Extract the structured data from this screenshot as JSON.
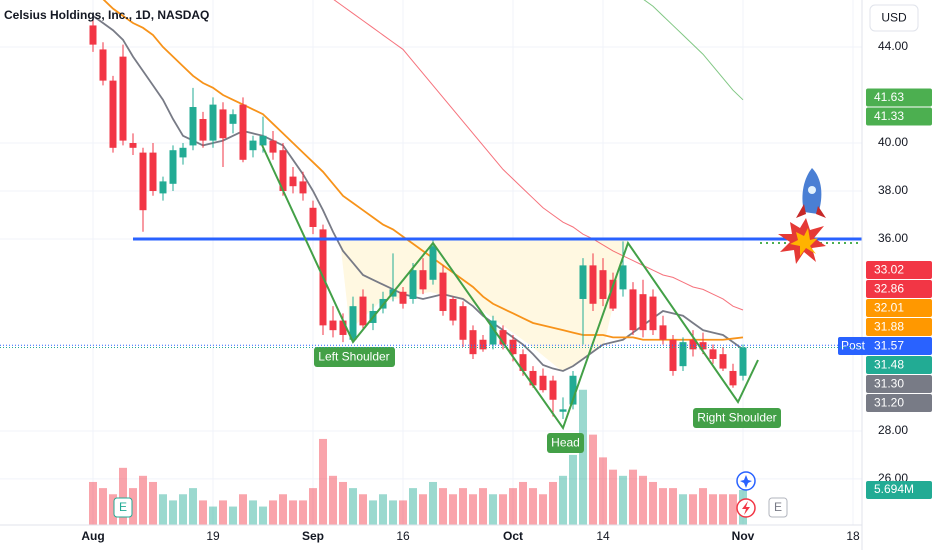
{
  "chart_data": {
    "type": "candlestick",
    "title": "Celsius Holdings, Inc., 1D, NASDAQ",
    "currency": "USD",
    "up_color": "#22ab94",
    "down_color": "#f23645",
    "grid": true,
    "categories": [
      "Aug",
      null,
      null,
      null,
      null,
      null,
      null,
      null,
      null,
      null,
      null,
      null,
      "19",
      null,
      null,
      null,
      null,
      null,
      null,
      null,
      null,
      null,
      "Sep",
      null,
      null,
      null,
      null,
      null,
      null,
      null,
      null,
      "16",
      null,
      null,
      null,
      null,
      null,
      null,
      null,
      null,
      null,
      null,
      "Oct",
      null,
      null,
      null,
      null,
      null,
      null,
      null,
      null,
      "14",
      null,
      null,
      null,
      null,
      null,
      null,
      null,
      null,
      null,
      null,
      null,
      null,
      null,
      "Nov",
      null,
      null,
      null,
      null,
      null,
      null,
      null,
      null,
      null,
      null,
      "18"
    ],
    "open": [
      44.9,
      43.9,
      42.6,
      43.6,
      40.0,
      39.6,
      39.6,
      37.9,
      38.3,
      39.4,
      39.9,
      41.0,
      40.1,
      41.4,
      40.8,
      41.6,
      39.7,
      39.9,
      40.1,
      39.7,
      38.6,
      38.4,
      37.3,
      36.4,
      32.6,
      32.6,
      31.8,
      33.6,
      32.5,
      33.1,
      33.6,
      33.8,
      33.5,
      34.7,
      34.3,
      34.6,
      33.5,
      33.2,
      32.2,
      31.8,
      31.6,
      32.2,
      31.8,
      31.2,
      30.5,
      30.3,
      30.1,
      28.8,
      29.1,
      33.5,
      34.9,
      34.7,
      34.3,
      33.9,
      33.9,
      33.7,
      33.6,
      32.4,
      31.8,
      30.7,
      31.8,
      31.7,
      31.4,
      31.2,
      30.5,
      30.3,
      null,
      null,
      null,
      null,
      null,
      null,
      null,
      null,
      null,
      null,
      null
    ],
    "high": [
      45.4,
      44.2,
      42.8,
      44.1,
      40.4,
      39.8,
      40.0,
      38.6,
      39.9,
      40.0,
      42.3,
      41.3,
      41.9,
      41.7,
      41.4,
      41.9,
      40.3,
      41.1,
      40.5,
      40.0,
      39.0,
      38.8,
      37.6,
      36.6,
      33.2,
      32.9,
      33.6,
      33.9,
      33.3,
      33.8,
      35.4,
      34.0,
      35.0,
      35.2,
      36.0,
      34.9,
      33.6,
      33.4,
      32.4,
      32.0,
      32.8,
      32.4,
      32.0,
      31.4,
      30.7,
      30.6,
      30.3,
      29.4,
      30.5,
      35.2,
      35.4,
      35.2,
      34.6,
      35.9,
      34.2,
      34.3,
      33.9,
      32.8,
      32.0,
      31.9,
      32.2,
      32.1,
      31.6,
      31.5,
      30.8,
      31.6,
      null,
      null,
      null,
      null,
      null,
      null,
      null,
      null,
      null,
      null,
      null
    ],
    "low": [
      43.8,
      42.4,
      39.6,
      39.9,
      39.5,
      36.3,
      37.8,
      37.6,
      38.0,
      39.1,
      39.7,
      39.8,
      39.8,
      39.0,
      40.4,
      39.2,
      39.4,
      39.6,
      39.3,
      37.8,
      37.9,
      37.6,
      36.2,
      32.0,
      31.9,
      31.7,
      31.7,
      32.2,
      32.2,
      32.9,
      33.4,
      33.1,
      33.3,
      33.7,
      34.1,
      32.8,
      32.4,
      31.5,
      31.0,
      31.3,
      31.4,
      31.4,
      30.9,
      30.3,
      29.8,
      29.6,
      28.6,
      28.5,
      28.9,
      31.6,
      33.0,
      33.2,
      33.0,
      33.6,
      32.0,
      31.9,
      32.0,
      31.6,
      30.3,
      30.5,
      31.1,
      31.2,
      30.8,
      30.5,
      29.8,
      30.1,
      null,
      null,
      null,
      null,
      null,
      null,
      null,
      null,
      null,
      null,
      null
    ],
    "close": [
      44.1,
      42.6,
      39.8,
      40.1,
      39.8,
      37.2,
      38.0,
      38.4,
      39.7,
      39.8,
      41.5,
      40.1,
      41.6,
      40.2,
      41.2,
      39.3,
      40.1,
      40.3,
      39.6,
      38.0,
      38.2,
      37.9,
      36.5,
      32.4,
      32.2,
      32.0,
      33.2,
      32.4,
      33.0,
      33.5,
      33.9,
      33.3,
      34.7,
      33.9,
      35.7,
      33.0,
      32.6,
      31.8,
      31.2,
      31.4,
      32.6,
      31.6,
      31.2,
      30.5,
      29.9,
      29.7,
      29.3,
      28.9,
      30.3,
      34.9,
      33.3,
      33.5,
      33.1,
      34.9,
      32.2,
      32.2,
      32.2,
      31.8,
      30.5,
      31.7,
      31.4,
      31.4,
      31.0,
      30.6,
      29.9,
      31.48,
      null,
      null,
      null,
      null,
      null,
      null,
      null,
      null,
      null,
      null,
      null
    ],
    "volume": [
      7,
      6,
      5,
      9.3,
      6,
      8,
      7,
      5,
      4,
      5,
      6,
      4,
      3,
      4,
      3,
      5,
      4,
      3,
      4,
      5,
      4,
      4,
      6,
      14,
      8,
      7,
      6,
      5,
      4,
      5,
      4,
      4,
      6,
      5,
      7,
      6,
      5,
      6,
      5,
      6,
      5,
      5,
      6,
      7,
      6,
      5,
      7,
      8,
      11.4,
      22,
      14.7,
      11,
      9,
      8,
      9,
      8,
      7,
      6,
      6,
      5,
      5,
      6,
      5,
      5,
      5,
      5.694,
      null,
      null,
      null,
      null,
      null,
      null,
      null,
      null,
      null,
      null,
      null
    ],
    "lines": [
      {
        "color": "#787b86",
        "values": [
          45.3,
          45.0,
          44.7,
          44.3,
          43.6,
          43.0,
          42.4,
          41.8,
          41.0,
          40.3,
          40.1,
          39.9,
          40.0,
          40.1,
          40.3,
          40.5,
          40.4,
          40.3,
          40.1,
          39.9,
          39.3,
          38.7,
          38.0,
          37.2,
          36.3,
          35.5,
          35.0,
          34.5,
          34.3,
          34.1,
          33.9,
          33.7,
          33.6,
          33.5,
          33.6,
          33.7,
          33.6,
          33.5,
          33.2,
          32.8,
          32.5,
          32.2,
          31.9,
          31.6,
          31.2,
          30.75,
          30.6,
          30.5,
          30.7,
          31.0,
          31.3,
          31.6,
          31.7,
          31.8,
          32.1,
          32.4,
          32.7,
          33.0,
          32.9,
          32.8,
          32.5,
          32.2,
          32.1,
          32.0,
          31.7,
          31.4,
          null,
          null,
          null,
          null,
          null,
          null,
          null,
          null,
          null,
          null,
          null
        ]
      },
      {
        "color": "#f7931a",
        "values": [
          46.4,
          46.0,
          45.6,
          45.3,
          45.0,
          44.8,
          44.5,
          44.0,
          43.6,
          43.2,
          42.8,
          42.5,
          42.3,
          42.0,
          41.8,
          41.6,
          41.4,
          41.2,
          40.8,
          40.4,
          40.0,
          39.6,
          39.2,
          38.8,
          38.3,
          37.8,
          37.5,
          37.2,
          36.9,
          36.6,
          36.4,
          36.1,
          35.8,
          35.5,
          35.2,
          34.9,
          34.6,
          34.3,
          34.0,
          33.6,
          33.3,
          33.1,
          32.9,
          32.7,
          32.5,
          32.4,
          32.3,
          32.2,
          32.1,
          32.0,
          32.0,
          32.0,
          31.9,
          31.9,
          31.9,
          31.8,
          31.8,
          31.8,
          31.8,
          31.8,
          31.8,
          31.8,
          31.8,
          31.8,
          31.85,
          31.9,
          null,
          null,
          null,
          null,
          null,
          null,
          null,
          null,
          null,
          null,
          null
        ]
      },
      {
        "color": "#f23645",
        "values": [
          null,
          null,
          null,
          null,
          null,
          null,
          null,
          null,
          null,
          null,
          null,
          null,
          null,
          null,
          null,
          null,
          null,
          null,
          null,
          null,
          null,
          null,
          null,
          null,
          46.0,
          45.7,
          45.4,
          45.1,
          44.8,
          44.5,
          44.2,
          43.9,
          43.4,
          42.9,
          42.4,
          41.9,
          41.4,
          40.9,
          40.4,
          39.9,
          39.4,
          38.9,
          38.5,
          38.1,
          37.7,
          37.3,
          37.0,
          36.7,
          36.5,
          36.2,
          36.0,
          35.75,
          35.5,
          35.3,
          35.1,
          34.9,
          34.7,
          34.5,
          34.4,
          34.2,
          34.0,
          33.9,
          33.7,
          33.5,
          33.2,
          33.04,
          null,
          null,
          null,
          null,
          null,
          null,
          null,
          null,
          null,
          null,
          null
        ]
      },
      {
        "color": "#4caf50",
        "values": [
          null,
          null,
          null,
          null,
          null,
          null,
          null,
          null,
          null,
          null,
          null,
          null,
          null,
          null,
          null,
          null,
          null,
          null,
          null,
          null,
          null,
          null,
          null,
          null,
          null,
          null,
          null,
          null,
          null,
          null,
          null,
          null,
          null,
          null,
          null,
          null,
          null,
          null,
          null,
          null,
          null,
          null,
          null,
          null,
          null,
          null,
          null,
          null,
          null,
          null,
          null,
          null,
          null,
          null,
          null,
          46.0,
          45.7,
          45.3,
          44.9,
          44.5,
          44.1,
          43.7,
          43.2,
          42.7,
          42.2,
          41.8,
          null,
          null,
          null,
          null,
          null,
          null,
          null,
          null,
          null,
          null,
          null
        ]
      }
    ],
    "ylim": [
      24.08,
      45.96
    ],
    "yticks": [
      {
        "value": 44,
        "label": "44.00"
      },
      {
        "value": 40,
        "label": "40.00"
      },
      {
        "value": 38,
        "label": "38.00"
      },
      {
        "value": 36,
        "label": "36.00"
      },
      {
        "value": 28,
        "label": "28.00"
      },
      {
        "value": 26,
        "label": "26.00"
      }
    ],
    "y2lim": [
      0,
      85.4
    ],
    "price_labels": [
      {
        "value": 41.63,
        "color": "#4caf50"
      },
      {
        "value": 41.33,
        "color": "#4caf50"
      },
      {
        "value": 33.02,
        "color": "#f23645"
      },
      {
        "value": 32.86,
        "color": "#f23645"
      },
      {
        "value": 32.01,
        "color": "#ff9800"
      },
      {
        "value": 31.88,
        "color": "#ff9800"
      },
      {
        "value": 31.57,
        "color": "#2962ff",
        "tag": "Post"
      },
      {
        "value": 31.48,
        "color": "#22ab94"
      },
      {
        "value": {
          "value": 31.3,
          "label": "31.30"
        },
        "color": "#787b86"
      },
      {
        "value": {
          "value": 31.2,
          "label": "31.20"
        },
        "color": "#787b86"
      }
    ],
    "volume_label": {
      "value": 5.694,
      "label": "5.694M"
    },
    "annotations": [
      "Left Shoulder",
      "Head",
      "Right Shoulder"
    ],
    "events": [
      "E",
      "E"
    ]
  }
}
